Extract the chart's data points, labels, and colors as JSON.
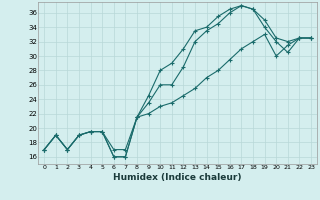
{
  "bg_color": "#d4eeee",
  "grid_color": "#b8d8d8",
  "line_color": "#1a6b6b",
  "marker": "+",
  "xlabel": "Humidex (Indice chaleur)",
  "ylabel_ticks": [
    16,
    18,
    20,
    22,
    24,
    26,
    28,
    30,
    32,
    34,
    36
  ],
  "xticks": [
    0,
    1,
    2,
    3,
    4,
    5,
    6,
    7,
    8,
    9,
    10,
    11,
    12,
    13,
    14,
    15,
    16,
    17,
    18,
    19,
    20,
    21,
    22,
    23
  ],
  "xlim": [
    -0.5,
    23.5
  ],
  "ylim": [
    15.0,
    37.5
  ],
  "lines": [
    {
      "x": [
        0,
        1,
        2,
        3,
        4,
        5,
        6,
        7,
        8,
        9,
        10,
        11,
        12,
        13,
        14,
        15,
        16,
        17,
        18,
        19,
        20,
        21,
        22,
        23
      ],
      "y": [
        17,
        19,
        17,
        19,
        19.5,
        19.5,
        16,
        16,
        21.5,
        24.5,
        28,
        29,
        31,
        33.5,
        34,
        35.5,
        36.5,
        37,
        36.5,
        35,
        32.5,
        32,
        32.5,
        32.5
      ]
    },
    {
      "x": [
        0,
        1,
        2,
        3,
        4,
        5,
        6,
        7,
        8,
        9,
        10,
        11,
        12,
        13,
        14,
        15,
        16,
        17,
        18,
        19,
        20,
        21,
        22,
        23
      ],
      "y": [
        17,
        19,
        17,
        19,
        19.5,
        19.5,
        17,
        17,
        21.5,
        23.5,
        26,
        26,
        28.5,
        32,
        33.5,
        34.5,
        36,
        37,
        36.5,
        34,
        32,
        30.5,
        32.5,
        32.5
      ]
    },
    {
      "x": [
        0,
        1,
        2,
        3,
        4,
        5,
        6,
        7,
        8,
        9,
        10,
        11,
        12,
        13,
        14,
        15,
        16,
        17,
        18,
        19,
        20,
        21,
        22,
        23
      ],
      "y": [
        17,
        19,
        17,
        19,
        19.5,
        19.5,
        16,
        16,
        21.5,
        22,
        23,
        23.5,
        24.5,
        25.5,
        27,
        28,
        29.5,
        31,
        32,
        33,
        30,
        31.5,
        32.5,
        32.5
      ]
    }
  ],
  "figsize": [
    3.2,
    2.0
  ],
  "dpi": 100
}
